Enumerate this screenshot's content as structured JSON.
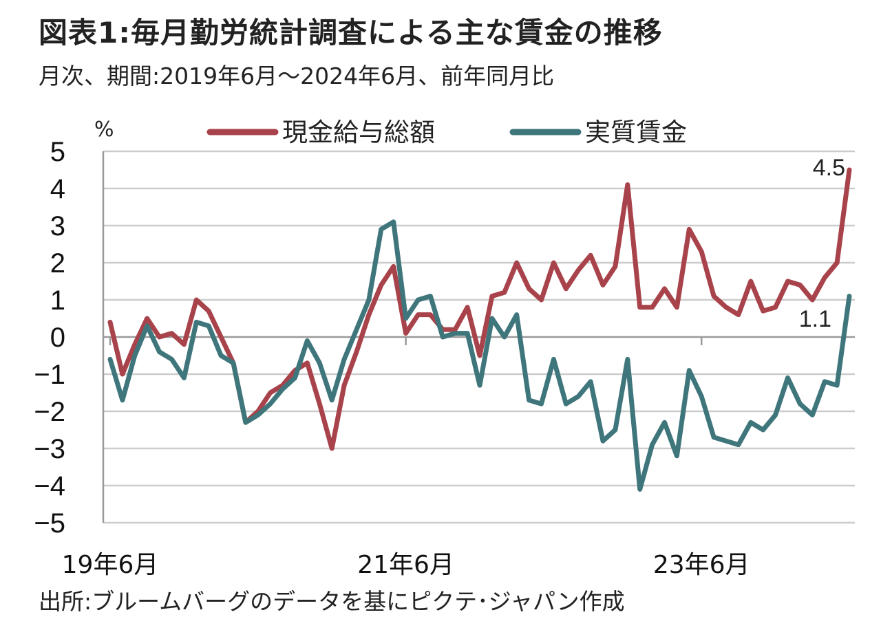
{
  "title": "図表1:毎月勤労統計調査による主な賃金の推移",
  "subtitle": "月次、期間:2019年6月～2024年6月、前年同月比",
  "source": "出所:ブルームバーグのデータを基にピクテ･ジャパン作成",
  "chart_data": {
    "type": "line",
    "yunit": "%",
    "ylim": [
      -5,
      5
    ],
    "yticks": [
      5,
      4,
      3,
      2,
      1,
      0,
      -1,
      -2,
      -3,
      -4,
      -5
    ],
    "ytick_labels": [
      "5",
      "4",
      "3",
      "2",
      "1",
      "0",
      "−1",
      "−2",
      "−3",
      "−4",
      "−5"
    ],
    "x": [
      "2019-06",
      "2019-07",
      "2019-08",
      "2019-09",
      "2019-10",
      "2019-11",
      "2019-12",
      "2020-01",
      "2020-02",
      "2020-03",
      "2020-04",
      "2020-05",
      "2020-06",
      "2020-07",
      "2020-08",
      "2020-09",
      "2020-10",
      "2020-11",
      "2020-12",
      "2021-01",
      "2021-02",
      "2021-03",
      "2021-04",
      "2021-05",
      "2021-06",
      "2021-07",
      "2021-08",
      "2021-09",
      "2021-10",
      "2021-11",
      "2021-12",
      "2022-01",
      "2022-02",
      "2022-03",
      "2022-04",
      "2022-05",
      "2022-06",
      "2022-07",
      "2022-08",
      "2022-09",
      "2022-10",
      "2022-11",
      "2022-12",
      "2023-01",
      "2023-02",
      "2023-03",
      "2023-04",
      "2023-05",
      "2023-06",
      "2023-07",
      "2023-08",
      "2023-09",
      "2023-10",
      "2023-11",
      "2023-12",
      "2024-01",
      "2024-02",
      "2024-03",
      "2024-04",
      "2024-05",
      "2024-06"
    ],
    "xtick_labels": [
      {
        "x": "2019-06",
        "label": "19年6月"
      },
      {
        "x": "2021-06",
        "label": "21年6月"
      },
      {
        "x": "2023-06",
        "label": "23年6月"
      }
    ],
    "grid": true,
    "legend_position": "top",
    "series": [
      {
        "name": "現金給与総額",
        "color": "#a8434b",
        "values": [
          0.4,
          -1.0,
          -0.2,
          0.5,
          0.0,
          0.1,
          -0.2,
          1.0,
          0.7,
          0.0,
          -0.7,
          -2.3,
          -2.0,
          -1.5,
          -1.3,
          -0.9,
          -0.7,
          -1.8,
          -3.0,
          -1.3,
          -0.4,
          0.6,
          1.4,
          1.9,
          0.1,
          0.6,
          0.6,
          0.2,
          0.2,
          0.8,
          -0.5,
          1.1,
          1.2,
          2.0,
          1.3,
          1.0,
          2.0,
          1.3,
          1.8,
          2.2,
          1.4,
          1.9,
          4.1,
          0.8,
          0.8,
          1.3,
          0.8,
          2.9,
          2.3,
          1.1,
          0.8,
          0.6,
          1.5,
          0.7,
          0.8,
          1.5,
          1.4,
          1.0,
          1.6,
          2.0,
          4.5
        ],
        "end_label": "4.5"
      },
      {
        "name": "実質賃金",
        "color": "#3f767c",
        "values": [
          -0.6,
          -1.7,
          -0.5,
          0.3,
          -0.4,
          -0.6,
          -1.1,
          0.4,
          0.3,
          -0.5,
          -0.7,
          -2.3,
          -2.1,
          -1.8,
          -1.4,
          -1.1,
          -0.1,
          -0.7,
          -1.7,
          -0.6,
          0.2,
          1.0,
          2.9,
          3.1,
          0.5,
          1.0,
          1.1,
          0.0,
          0.1,
          0.1,
          -1.3,
          0.5,
          0.0,
          0.6,
          -1.7,
          -1.8,
          -0.6,
          -1.8,
          -1.6,
          -1.2,
          -2.8,
          -2.5,
          -0.6,
          -4.1,
          -2.9,
          -2.3,
          -3.2,
          -0.9,
          -1.6,
          -2.7,
          -2.8,
          -2.9,
          -2.3,
          -2.5,
          -2.1,
          -1.1,
          -1.8,
          -2.1,
          -1.2,
          -1.3,
          1.1
        ],
        "end_label": "1.1"
      }
    ]
  }
}
